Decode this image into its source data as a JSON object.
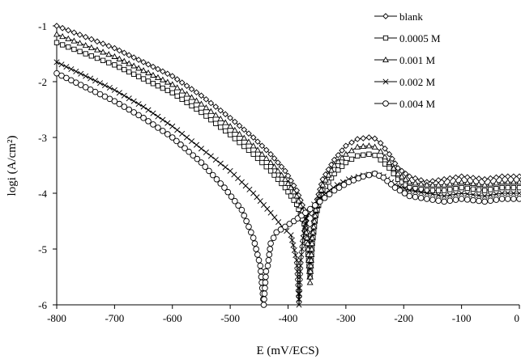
{
  "chart_data": {
    "type": "line",
    "xlabel": "E (mV/ECS)",
    "ylabel": "logi (A/cm²)",
    "xlim": [
      -800,
      0
    ],
    "ylim": [
      -6,
      -1
    ],
    "x_ticks": [
      "-800",
      "-700",
      "-600",
      "-500",
      "-400",
      "-300",
      "-200",
      "-100",
      "0"
    ],
    "y_ticks": [
      "-6",
      "-5",
      "-4",
      "-3",
      "-2",
      "-1"
    ],
    "grid": false,
    "legend_position": "top-right",
    "series": [
      {
        "name": "blank",
        "marker": "diamond",
        "x": [
          -800,
          -750,
          -700,
          -650,
          -600,
          -550,
          -500,
          -460,
          -430,
          -405,
          -385,
          -372,
          -366,
          -362,
          -358,
          -352,
          -340,
          -320,
          -300,
          -280,
          -260,
          -250,
          -240,
          -225,
          -210,
          -190,
          -160,
          -130,
          -100,
          -60,
          -30,
          0
        ],
        "y": [
          -1.0,
          -1.2,
          -1.4,
          -1.65,
          -1.9,
          -2.25,
          -2.65,
          -3.0,
          -3.3,
          -3.6,
          -3.95,
          -4.3,
          -4.7,
          -5.4,
          -4.7,
          -4.2,
          -3.75,
          -3.4,
          -3.15,
          -3.03,
          -3.0,
          -3.02,
          -3.1,
          -3.3,
          -3.55,
          -3.7,
          -3.8,
          -3.75,
          -3.7,
          -3.75,
          -3.7,
          -3.7
        ]
      },
      {
        "name": "0.0005 M",
        "marker": "square",
        "x": [
          -800,
          -750,
          -700,
          -650,
          -600,
          -550,
          -500,
          -460,
          -430,
          -405,
          -385,
          -372,
          -366,
          -362,
          -358,
          -352,
          -340,
          -320,
          -300,
          -280,
          -260,
          -250,
          -240,
          -225,
          -210,
          -190,
          -160,
          -130,
          -100,
          -60,
          -30,
          0
        ],
        "y": [
          -1.3,
          -1.5,
          -1.7,
          -1.95,
          -2.2,
          -2.55,
          -2.95,
          -3.3,
          -3.6,
          -3.9,
          -4.2,
          -4.55,
          -5.0,
          -5.5,
          -4.9,
          -4.4,
          -3.95,
          -3.65,
          -3.45,
          -3.33,
          -3.3,
          -3.32,
          -3.4,
          -3.55,
          -3.75,
          -3.9,
          -3.95,
          -3.95,
          -3.9,
          -3.95,
          -3.9,
          -3.9
        ]
      },
      {
        "name": "0.001 M",
        "marker": "triangle",
        "x": [
          -800,
          -750,
          -700,
          -650,
          -600,
          -550,
          -500,
          -460,
          -430,
          -405,
          -385,
          -372,
          -366,
          -362,
          -358,
          -352,
          -340,
          -320,
          -300,
          -280,
          -260,
          -250,
          -240,
          -225,
          -210,
          -190,
          -160,
          -130,
          -100,
          -60,
          -30,
          0
        ],
        "y": [
          -1.15,
          -1.35,
          -1.55,
          -1.8,
          -2.05,
          -2.4,
          -2.8,
          -3.15,
          -3.45,
          -3.75,
          -4.05,
          -4.4,
          -4.9,
          -5.6,
          -4.8,
          -4.3,
          -3.85,
          -3.5,
          -3.3,
          -3.17,
          -3.15,
          -3.17,
          -3.25,
          -3.45,
          -3.65,
          -3.8,
          -3.85,
          -3.85,
          -3.8,
          -3.85,
          -3.8,
          -3.8
        ]
      },
      {
        "name": "0.002 M",
        "marker": "cross",
        "x": [
          -800,
          -750,
          -700,
          -650,
          -600,
          -550,
          -500,
          -460,
          -430,
          -410,
          -395,
          -385,
          -381,
          -378,
          -374,
          -368,
          -355,
          -335,
          -315,
          -295,
          -270,
          -250,
          -235,
          -215,
          -190,
          -160,
          -130,
          -100,
          -60,
          -30,
          0
        ],
        "y": [
          -1.65,
          -1.9,
          -2.15,
          -2.45,
          -2.8,
          -3.2,
          -3.6,
          -4.0,
          -4.35,
          -4.6,
          -4.75,
          -5.2,
          -6.0,
          -5.2,
          -4.8,
          -4.45,
          -4.2,
          -4.0,
          -3.85,
          -3.75,
          -3.68,
          -3.65,
          -3.7,
          -3.85,
          -3.95,
          -4.0,
          -4.05,
          -4.0,
          -4.05,
          -4.0,
          -4.0
        ]
      },
      {
        "name": "0.004 M",
        "marker": "circle",
        "x": [
          -800,
          -750,
          -700,
          -650,
          -600,
          -550,
          -510,
          -480,
          -460,
          -448,
          -442,
          -438,
          -435,
          -430,
          -420,
          -405,
          -390,
          -370,
          -345,
          -320,
          -295,
          -270,
          -250,
          -235,
          -215,
          -190,
          -160,
          -130,
          -100,
          -60,
          -30,
          0
        ],
        "y": [
          -1.85,
          -2.1,
          -2.35,
          -2.65,
          -3.0,
          -3.45,
          -3.9,
          -4.3,
          -4.8,
          -5.3,
          -6.0,
          -5.4,
          -5.3,
          -4.9,
          -4.7,
          -4.6,
          -4.5,
          -4.35,
          -4.15,
          -3.95,
          -3.8,
          -3.7,
          -3.65,
          -3.72,
          -3.9,
          -4.05,
          -4.1,
          -4.15,
          -4.1,
          -4.15,
          -4.1,
          -4.1
        ]
      }
    ]
  }
}
